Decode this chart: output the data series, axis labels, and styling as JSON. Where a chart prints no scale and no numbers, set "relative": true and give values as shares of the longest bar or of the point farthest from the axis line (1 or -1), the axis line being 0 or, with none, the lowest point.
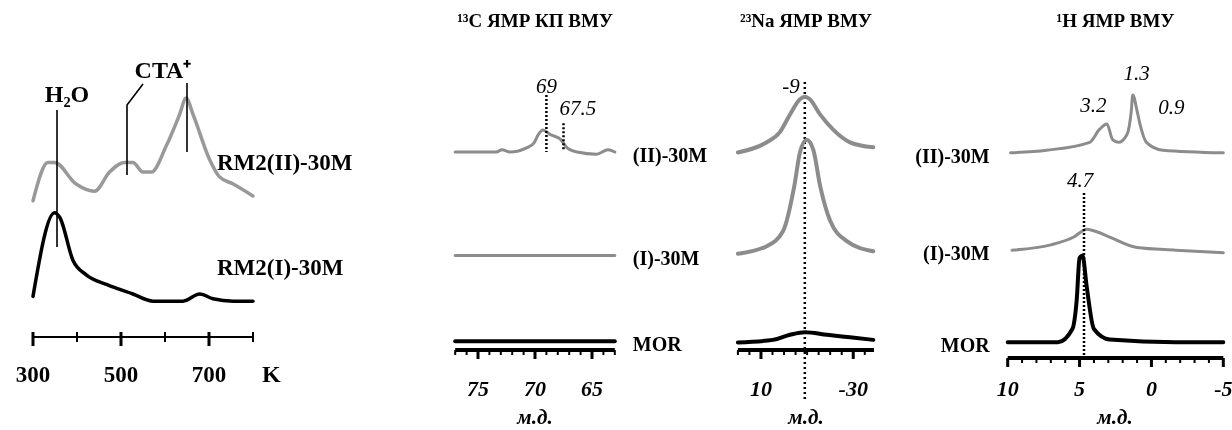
{
  "chart_data": [
    {
      "type": "line",
      "relative": true,
      "xlabel": "K",
      "xlim": [
        300,
        800
      ],
      "xticks": [
        300,
        {
          "value": 400,
          "label": null
        },
        500,
        {
          "value": 600,
          "label": null
        },
        700,
        {
          "value": 800,
          "label": null
        }
      ],
      "series": [
        {
          "name": "RM2(II)-30M",
          "color": "#999999",
          "x": [
            300,
            334,
            349,
            398,
            440,
            474,
            508,
            527,
            550,
            569,
            603,
            633,
            648,
            664,
            702,
            724,
            755,
            800
          ],
          "values": [
            0.57,
            0.73,
            0.73,
            0.64,
            0.61,
            0.69,
            0.73,
            0.73,
            0.69,
            0.69,
            0.8,
            0.93,
            1.0,
            0.93,
            0.74,
            0.67,
            0.64,
            0.59
          ]
        },
        {
          "name": "RM2(I)-30M",
          "color": "#000000",
          "x": [
            300,
            349,
            361,
            391,
            421,
            467,
            527,
            573,
            641,
            679,
            709,
            755,
            800
          ],
          "values": [
            0.17,
            0.52,
            0.5,
            0.32,
            0.26,
            0.22,
            0.18,
            0.15,
            0.15,
            0.18,
            0.16,
            0.15,
            0.15
          ]
        }
      ],
      "annotations": [
        "H₂O",
        {
          "text": "CTA⁺",
          "x": 650,
          "y": 1.0
        }
      ]
    },
    {
      "type": "line",
      "relative": true,
      "title": "¹³C ЯМР КП ВМУ",
      "xlabel": "м.д.",
      "xlim": [
        77,
        63
      ],
      "xticks": [
        {
          "value": 77,
          "label": null
        },
        {
          "value": 76,
          "label": null
        },
        75,
        {
          "value": 74,
          "label": null
        },
        {
          "value": 73,
          "label": null
        },
        {
          "value": 72,
          "label": null
        },
        {
          "value": 71,
          "label": null
        },
        70,
        {
          "value": 69,
          "label": null
        },
        {
          "value": 68,
          "label": null
        },
        {
          "value": 67,
          "label": null
        },
        {
          "value": 66,
          "label": null
        },
        65,
        {
          "value": 64,
          "label": null
        },
        {
          "value": 63,
          "label": null
        }
      ],
      "series": [
        {
          "name": "(II)-30M",
          "color": "#8c8c8c",
          "x": [
            77,
            73.4,
            72.9,
            72.2,
            70.7,
            70.1,
            69.7,
            69.3,
            68.7,
            67.8,
            67.2,
            66.3,
            64.6,
            63.6,
            63
          ],
          "values": [
            0.9,
            0.9,
            0.91,
            0.9,
            0.92,
            0.94,
            0.98,
            1.0,
            0.98,
            0.96,
            0.92,
            0.9,
            0.89,
            0.91,
            0.9
          ]
        },
        {
          "name": "(I)-30M",
          "color": "#8c8c8c",
          "x": [
            77,
            63
          ],
          "values": [
            0.43,
            0.43
          ]
        },
        {
          "name": "MOR",
          "color": "#000000",
          "x": [
            77,
            63
          ],
          "values": [
            0.04,
            0.04
          ]
        }
      ],
      "annotations": [
        {
          "text": "69",
          "x": 69,
          "y": 1.0
        },
        {
          "text": "67.5",
          "x": 67.5,
          "y": 0.94
        }
      ]
    },
    {
      "type": "line",
      "relative": true,
      "title": "²³Na ЯМР ВМУ",
      "xlabel": "м.д.",
      "xlim": [
        20,
        -39
      ],
      "xticks": [
        {
          "value": 20,
          "label": null
        },
        {
          "value": 15,
          "label": null
        },
        10,
        {
          "value": 5,
          "label": null
        },
        {
          "value": 0,
          "label": null
        },
        {
          "value": -5,
          "label": null
        },
        {
          "value": -10,
          "label": null
        },
        {
          "value": -15,
          "label": null
        },
        {
          "value": -20,
          "label": null
        },
        {
          "value": -25,
          "label": null
        },
        -30,
        {
          "value": -35,
          "label": null
        }
      ],
      "series": [
        {
          "color": "#8c8c8c",
          "x": [
            20,
            7.5,
            1.8,
            -2.6,
            -6.9,
            -9.1,
            -11.2,
            -15.6,
            -21.3,
            -28.6,
            -38.7
          ],
          "values": [
            0.78,
            0.82,
            0.86,
            0.93,
            0.99,
            1.0,
            0.99,
            0.93,
            0.87,
            0.82,
            0.8
          ]
        },
        {
          "color": "#8c8c8c",
          "x": [
            20,
            7.5,
            0.4,
            -4.5,
            -6.9,
            -9.8,
            -12.7,
            -15.6,
            -20,
            -27.2,
            -38.7
          ],
          "values": [
            0.38,
            0.41,
            0.47,
            0.65,
            0.78,
            0.83,
            0.79,
            0.65,
            0.51,
            0.43,
            0.39
          ]
        },
        {
          "color": "#000000",
          "x": [
            20,
            4.8,
            -2.6,
            -9.1,
            -18.6,
            -28.6,
            -38.7
          ],
          "values": [
            0.03,
            0.04,
            0.06,
            0.07,
            0.06,
            0.05,
            0.04
          ]
        }
      ],
      "ref_lines": [
        {
          "axis": "x",
          "value": -9,
          "label": "-9",
          "line_style": "dotted"
        }
      ]
    },
    {
      "type": "line",
      "relative": true,
      "title": "¹H ЯМР ВМУ",
      "xlabel": "м.д.",
      "xlim": [
        10,
        -5
      ],
      "xticks": [
        10,
        {
          "value": 9,
          "label": null
        },
        {
          "value": 8,
          "label": null
        },
        {
          "value": 7,
          "label": null
        },
        {
          "value": 6,
          "label": null
        },
        5,
        {
          "value": 4,
          "label": null
        },
        {
          "value": 3,
          "label": null
        },
        {
          "value": 2,
          "label": null
        },
        {
          "value": 1,
          "label": null
        },
        0,
        {
          "value": -1,
          "label": null
        },
        {
          "value": -2,
          "label": null
        },
        {
          "value": -3,
          "label": null
        },
        {
          "value": -4,
          "label": null
        },
        -5
      ],
      "series": [
        {
          "name": "(II)-30M",
          "color": "#8c8c8c",
          "x": [
            9.8,
            7.3,
            4.3,
            3.6,
            3.1,
            2.7,
            2.3,
            1.7,
            1.4,
            1.3,
            1.0,
            0.8,
            0.35,
            -0.8,
            -5
          ],
          "values": [
            0.78,
            0.79,
            0.82,
            0.87,
            0.89,
            0.83,
            0.82,
            0.85,
            0.94,
            1.0,
            0.94,
            0.89,
            0.82,
            0.79,
            0.78
          ]
        },
        {
          "name": "(I)-30M",
          "color": "#8c8c8c",
          "x": [
            9.7,
            7.0,
            5.4,
            4.5,
            3.8,
            2.9,
            1.0,
            -1.7,
            -5
          ],
          "values": [
            0.41,
            0.43,
            0.46,
            0.49,
            0.48,
            0.46,
            0.42,
            0.41,
            0.4
          ]
        },
        {
          "name": "MOR",
          "color": "#000000",
          "x": [
            10,
            6.5,
            5.5,
            5.2,
            5.0,
            4.8,
            4.5,
            4.0,
            2.9,
            -1.7,
            -5
          ],
          "values": [
            0.06,
            0.06,
            0.11,
            0.22,
            0.38,
            0.39,
            0.27,
            0.11,
            0.07,
            0.06,
            0.06
          ]
        }
      ],
      "annotations": [
        {
          "text": "3.2",
          "x": 3.2,
          "y": 0.89
        },
        {
          "text": "1.3",
          "x": 1.3,
          "y": 1.0
        },
        {
          "text": "0.9",
          "x": 0.9,
          "y": 0.89
        },
        "4.7"
      ]
    }
  ]
}
